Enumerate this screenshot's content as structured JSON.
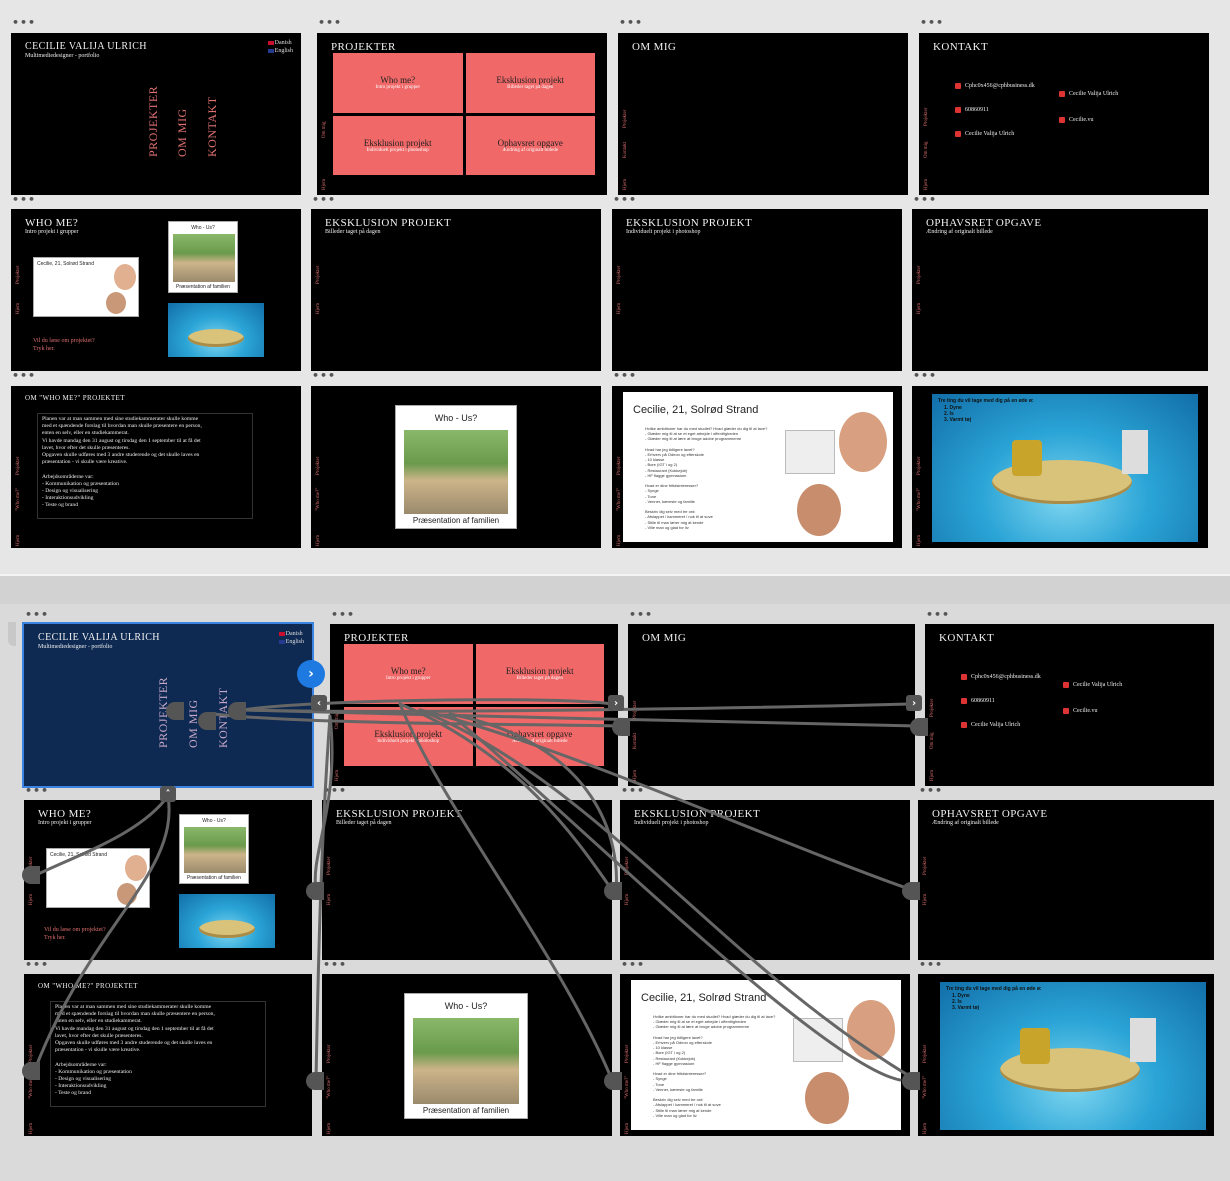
{
  "common": {
    "dots": "•••",
    "nav_home": "Hjem",
    "nav_projekter": "Projekter",
    "nav_om_mig": "Om mig",
    "nav_kontakt": "Kontakt",
    "nav_who": "\"Who me?\""
  },
  "title_slide": {
    "name": "CECILIE VALIJA ULRICH",
    "subtitle": "Multimediedesigner - portfolio",
    "lang_danish": "Danish",
    "lang_english": "English",
    "nav1": "PROJEKTER",
    "nav2": "OM MIG",
    "nav3": "KONTAKT"
  },
  "projekter": {
    "title": "PROJEKTER",
    "cells": [
      {
        "title": "Who me?",
        "sub": "Intro projekt i grupper"
      },
      {
        "title": "Eksklusion projekt",
        "sub": "Billeder taget på dagen"
      },
      {
        "title": "Eksklusion projekt",
        "sub": "Individuelt projekt i photoshop"
      },
      {
        "title": "Ophavsret opgave",
        "sub": "Ændring af originalt billede"
      }
    ]
  },
  "om_mig": {
    "title": "OM MIG"
  },
  "kontakt": {
    "title": "KONTAKT",
    "email": "Cphc0x456@cphbusiness.dk",
    "phone": "60860911",
    "linkedin": "Cecilie Valija Ulrich",
    "facebook": "Cecilie Valija Ulrich",
    "instagram": "Cecilie.vu"
  },
  "who_me": {
    "title": "WHO ME?",
    "sub": "Intro projekt i grupper",
    "cta1": "Vil du læse om projektet?",
    "cta2": "Tryk her."
  },
  "eks1": {
    "title": "EKSKLUSION PROJEKT",
    "sub": "Billeder taget på dagen"
  },
  "eks2": {
    "title": "EKSKLUSION PROJEKT",
    "sub": "Individuelt projekt i photoshop"
  },
  "ophav": {
    "title": "OPHAVSRET OPGAVE",
    "sub": "Ændring af originalt billede"
  },
  "om_who": {
    "title": "OM \"WHO ME?\" PROJEKTET",
    "body": "Planen var at man sammen med sine studiekammerater skulle komme\nmed et spændende forslag til hvordan man skulle præsentere en person,\nenten en selv, eller en studiekammerat.\nVi havde mandag den 31 august og tirsdag den 1 september til at få det\nlavet, hvor efter det skulle præsenteres.\nOpgaven skulle udføres med 3 andre studerende og det skulle laves en\npræsentation - vi skulle være kreative.\n\nArbejdsområderne var:\n- Kommunikation og præsentation\n- Design og visualisering\n- Interaktionsudvikling\n- Teste og brand"
  },
  "who_us": {
    "title": "Who - Us?",
    "caption": "Præsentation af familien"
  },
  "cecilie": {
    "title": "Cecilie, 21, Solrød Strand",
    "body": "Hvilke ambitioner har du med studiet? Hvad glæder du dig til at lave?\n- Glæder mig til at se et eget arbejde i offentligheden\n- Glæder mig til at lære at bruge adobe programmerne\n\nHvad har jeg tidligere lavet?\n- Erhverv på Odeon og efterskole\n- 10 klasse\n- Bore (IGT i og 2)\n- Restaurant (Kokkejob)\n- HF flagge gymnasium\n\nHvad er dine fritidsinteresser?\n- Synge\n- Tone\n- Venner, kæreste og familie\n\nBeskriv dig selv med tre ord:\n- Afslappet / kammeret / nok til at sove\n- Stille til man lærer mig at kende\n- Ville man og glad for liv"
  },
  "island": {
    "title": "Tre ting du vil tage med dig på en øde ø:",
    "items": [
      "1. Dyne",
      "2. Is",
      "3. Varmt tøj"
    ]
  }
}
